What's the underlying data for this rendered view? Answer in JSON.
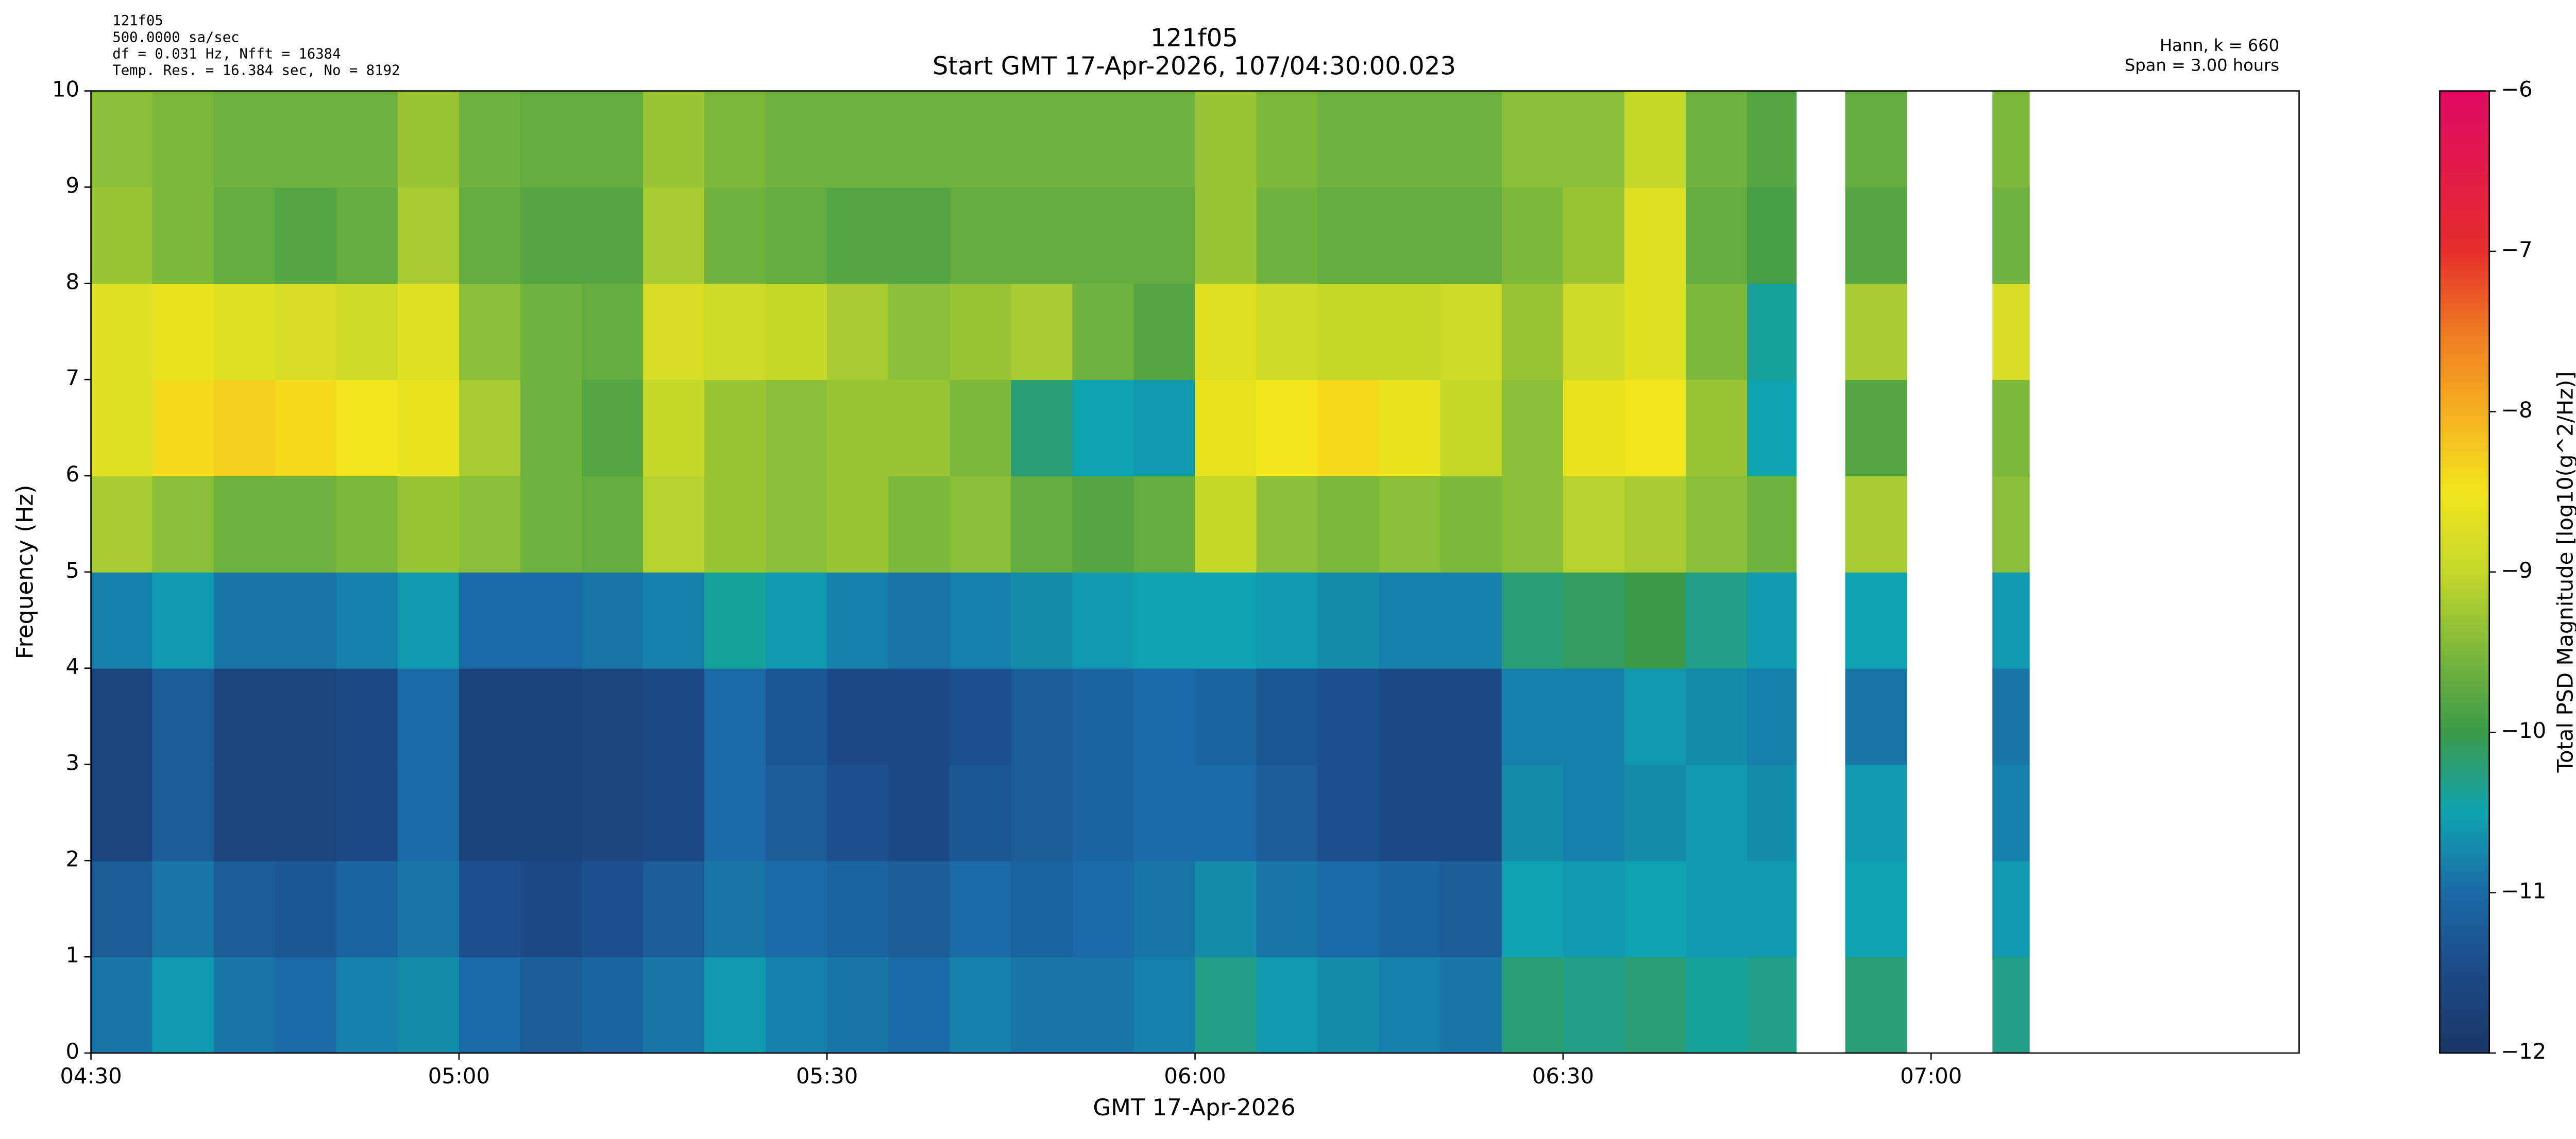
{
  "chart_data": {
    "type": "heatmap",
    "title": [
      "121f05",
      "Start GMT 17-Apr-2026, 107/04:30:00.023"
    ],
    "title_color": "#000080",
    "annotations_left": [
      "121f05",
      "500.0000 sa/sec",
      "df = 0.031 Hz,  Nfft = 16384",
      "Temp. Res. = 16.384 sec, No = 8192"
    ],
    "annotations_right": [
      "Hann, k = 660",
      "Span = 3.00 hours"
    ],
    "xlabel": "GMT 17-Apr-2026",
    "ylabel": "Frequency (Hz)",
    "colorbar_label": "Total PSD Magnitude [log10(g^2/Hz)]",
    "x_edges": [
      "04:30",
      "04:35",
      "04:40",
      "04:45",
      "04:50",
      "04:55",
      "05:00",
      "05:05",
      "05:10",
      "05:15",
      "05:20",
      "05:25",
      "05:30",
      "05:35",
      "05:40",
      "05:45",
      "05:50",
      "05:55",
      "06:00",
      "06:05",
      "06:10",
      "06:15",
      "06:20",
      "06:25",
      "06:30",
      "06:35",
      "06:40",
      "06:45",
      "06:49",
      "06:53",
      "06:58",
      "07:05",
      "07:08",
      "07:30"
    ],
    "y_edges": [
      0,
      1,
      2,
      3,
      4,
      5,
      6,
      7,
      8,
      9,
      10
    ],
    "z": [
      [
        -10.9,
        -10.6,
        -10.9,
        -11.0,
        -10.8,
        -10.7,
        -11.0,
        -11.2,
        -11.1,
        -10.9,
        -10.6,
        -10.8,
        -10.9,
        -11.0,
        -10.8,
        -10.9,
        -10.9,
        -10.8,
        -10.3,
        -10.6,
        -10.7,
        -10.8,
        -10.9,
        -10.2,
        -10.3,
        -10.2,
        -10.4,
        -10.3,
        null,
        -10.2,
        null,
        -10.3,
        null
      ],
      [
        -11.2,
        -10.9,
        -11.2,
        -11.3,
        -11.1,
        -10.9,
        -11.4,
        -11.5,
        -11.4,
        -11.2,
        -10.9,
        -11.0,
        -11.1,
        -11.2,
        -11.0,
        -11.1,
        -11.0,
        -10.9,
        -10.7,
        -10.9,
        -11.0,
        -11.1,
        -11.2,
        -10.5,
        -10.6,
        -10.5,
        -10.6,
        -10.6,
        null,
        -10.5,
        null,
        -10.6,
        null
      ],
      [
        -11.6,
        -11.2,
        -11.6,
        -11.6,
        -11.5,
        -11.0,
        -11.7,
        -11.7,
        -11.6,
        -11.5,
        -11.0,
        -11.2,
        -11.4,
        -11.5,
        -11.3,
        -11.2,
        -11.1,
        -11.0,
        -11.0,
        -11.2,
        -11.4,
        -11.5,
        -11.5,
        -10.7,
        -10.8,
        -10.7,
        -10.6,
        -10.7,
        null,
        -10.6,
        null,
        -10.8,
        null
      ],
      [
        -11.6,
        -11.2,
        -11.6,
        -11.6,
        -11.5,
        -11.0,
        -11.7,
        -11.7,
        -11.6,
        -11.5,
        -11.0,
        -11.3,
        -11.5,
        -11.5,
        -11.4,
        -11.2,
        -11.1,
        -11.0,
        -11.1,
        -11.3,
        -11.4,
        -11.5,
        -11.5,
        -10.8,
        -10.8,
        -10.6,
        -10.7,
        -10.8,
        null,
        -10.9,
        null,
        -10.9,
        null
      ],
      [
        -10.8,
        -10.6,
        -10.9,
        -10.9,
        -10.8,
        -10.6,
        -11.0,
        -11.0,
        -10.9,
        -10.8,
        -10.4,
        -10.6,
        -10.8,
        -10.9,
        -10.8,
        -10.7,
        -10.6,
        -10.5,
        -10.5,
        -10.6,
        -10.7,
        -10.8,
        -10.8,
        -10.2,
        -10.1,
        -10.0,
        -10.3,
        -10.6,
        null,
        -10.5,
        null,
        -10.6,
        null
      ],
      [
        -9.2,
        -9.4,
        -9.6,
        -9.6,
        -9.5,
        -9.3,
        -9.4,
        -9.6,
        -9.7,
        -9.1,
        -9.3,
        -9.4,
        -9.3,
        -9.5,
        -9.4,
        -9.7,
        -9.8,
        -9.7,
        -9.0,
        -9.4,
        -9.5,
        -9.4,
        -9.5,
        -9.4,
        -9.1,
        -9.2,
        -9.4,
        -9.6,
        null,
        -9.2,
        null,
        -9.4,
        null
      ],
      [
        -8.7,
        -8.4,
        -8.3,
        -8.4,
        -8.5,
        -8.6,
        -9.2,
        -9.6,
        -9.8,
        -9.0,
        -9.3,
        -9.4,
        -9.3,
        -9.3,
        -9.5,
        -10.2,
        -10.5,
        -10.6,
        -8.6,
        -8.5,
        -8.4,
        -8.6,
        -9.0,
        -9.4,
        -8.6,
        -8.5,
        -9.3,
        -10.5,
        null,
        -9.8,
        null,
        -9.5,
        null
      ],
      [
        -8.7,
        -8.6,
        -8.7,
        -8.8,
        -8.9,
        -8.7,
        -9.4,
        -9.6,
        -9.7,
        -8.8,
        -8.9,
        -9.0,
        -9.2,
        -9.4,
        -9.3,
        -9.2,
        -9.6,
        -9.8,
        -8.7,
        -8.9,
        -9.0,
        -9.0,
        -8.9,
        -9.3,
        -8.9,
        -8.7,
        -9.5,
        -10.4,
        null,
        -9.2,
        null,
        -8.8,
        null
      ],
      [
        -9.3,
        -9.5,
        -9.7,
        -9.8,
        -9.7,
        -9.2,
        -9.7,
        -9.8,
        -9.8,
        -9.2,
        -9.6,
        -9.7,
        -9.8,
        -9.8,
        -9.7,
        -9.7,
        -9.7,
        -9.7,
        -9.3,
        -9.6,
        -9.7,
        -9.7,
        -9.7,
        -9.5,
        -9.3,
        -8.7,
        -9.7,
        -9.9,
        null,
        -9.8,
        null,
        -9.6,
        null
      ],
      [
        -9.4,
        -9.5,
        -9.6,
        -9.6,
        -9.6,
        -9.3,
        -9.6,
        -9.7,
        -9.7,
        -9.3,
        -9.5,
        -9.6,
        -9.6,
        -9.6,
        -9.6,
        -9.6,
        -9.6,
        -9.6,
        -9.3,
        -9.5,
        -9.6,
        -9.6,
        -9.6,
        -9.4,
        -9.4,
        -9.0,
        -9.6,
        -9.8,
        null,
        -9.7,
        null,
        -9.5,
        null
      ]
    ],
    "xlim": [
      "04:30",
      "07:30"
    ],
    "ylim": [
      0,
      10
    ],
    "xticks": [
      "04:30",
      "05:00",
      "05:30",
      "06:00",
      "06:30",
      "07:00"
    ],
    "yticks": [
      0,
      1,
      2,
      3,
      4,
      5,
      6,
      7,
      8,
      9,
      10
    ],
    "zlim": [
      -12,
      -6
    ],
    "zticks": [
      {
        "value": -6,
        "label": "−6"
      },
      {
        "value": -7,
        "label": "−7"
      },
      {
        "value": -8,
        "label": "−8"
      },
      {
        "value": -9,
        "label": "−9"
      },
      {
        "value": -10,
        "label": "−10"
      },
      {
        "value": -11,
        "label": "−11"
      },
      {
        "value": -12,
        "label": "−12"
      }
    ],
    "colors": [
      "#1a3666",
      "#1b4a86",
      "#1a6aa6",
      "#0ea3b0",
      "#3a9a48",
      "#7cb83a",
      "#c4d82a",
      "#f2e51c",
      "#f5b020",
      "#ef7a22",
      "#e52e2a",
      "#e21a48",
      "#df0a62"
    ]
  }
}
